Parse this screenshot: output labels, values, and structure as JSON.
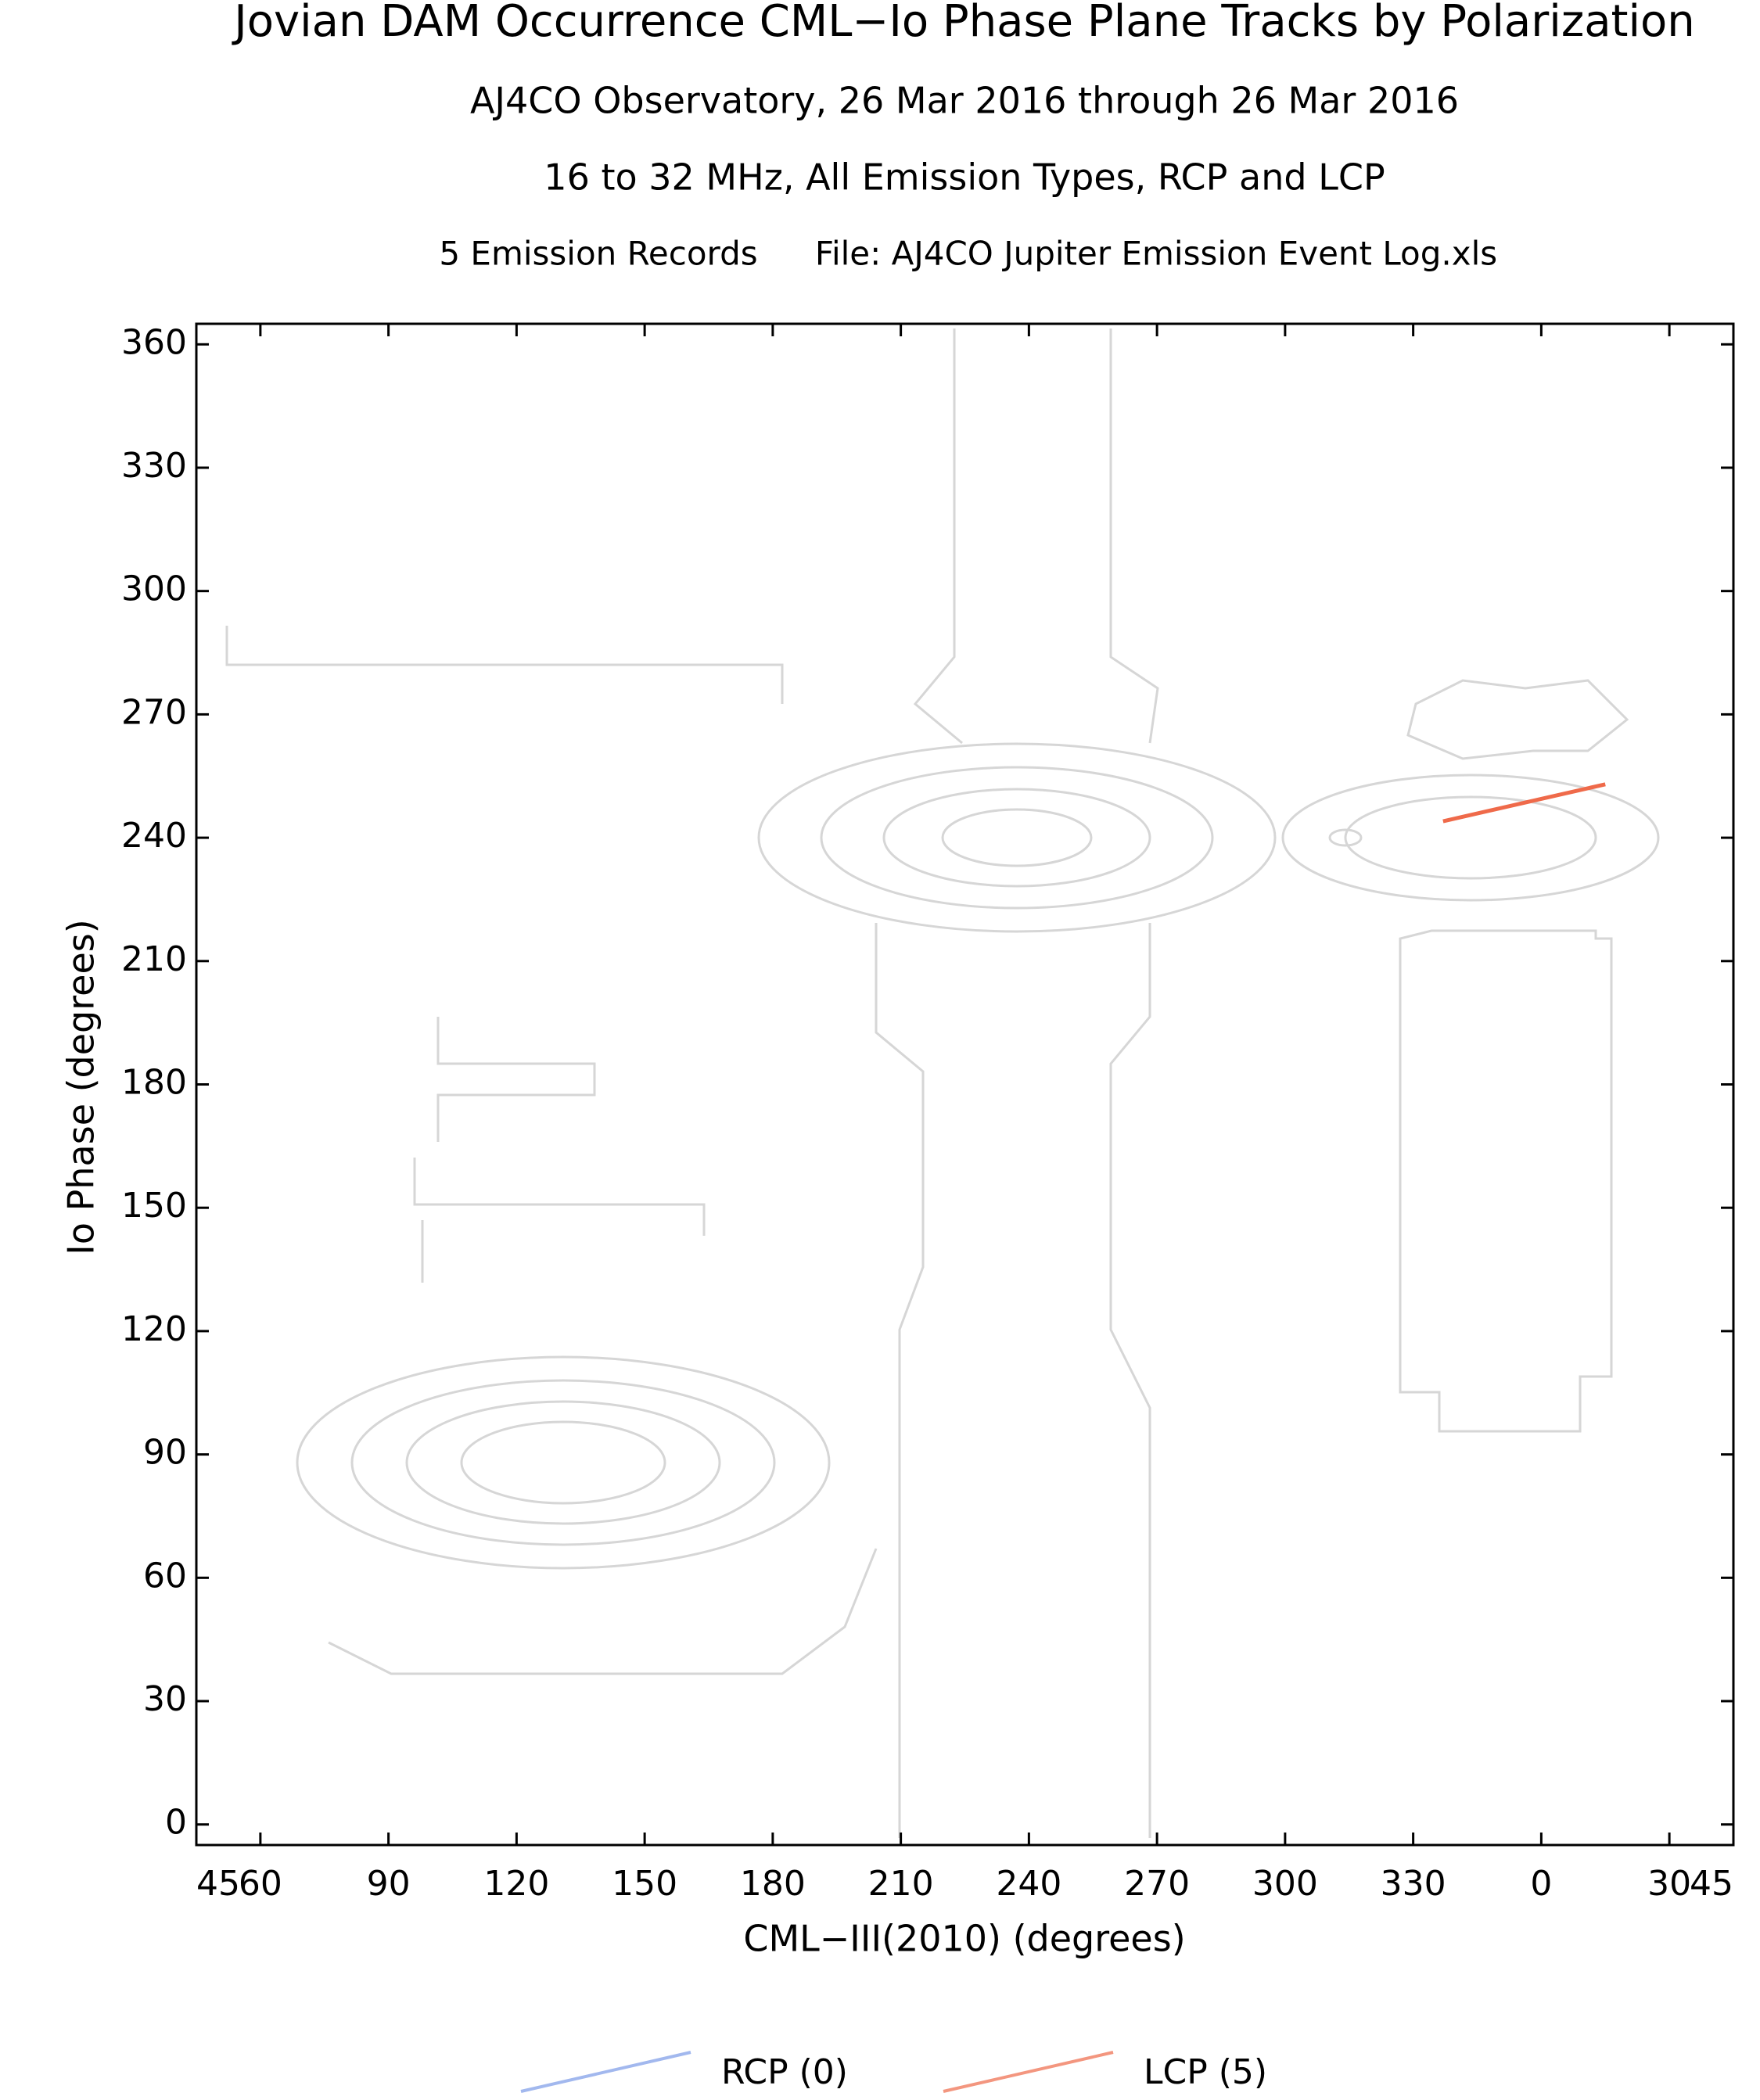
{
  "chart_data": {
    "type": "line",
    "title": "Jovian DAM Occurrence CML−Io Phase Plane Tracks by Polarization",
    "subtitles": [
      "AJ4CO Observatory, 26 Mar 2016 through 26 Mar 2016",
      "16 to 32 MHz, All Emission Types, RCP and LCP"
    ],
    "records_note": "5 Emission Records",
    "file_note": "File: AJ4CO Jupiter Emission Event Log.xls",
    "x_label": "CML−III(2010) (degrees)",
    "y_label": "Io Phase (degrees)",
    "xlim": [
      45,
      405
    ],
    "xticks": [
      45,
      60,
      90,
      120,
      150,
      180,
      210,
      240,
      270,
      300,
      330,
      {
        "value": 360,
        "label": "0"
      },
      {
        "value": 390,
        "label": "30"
      },
      {
        "value": 405,
        "label": "45"
      }
    ],
    "ylim": [
      -5,
      365
    ],
    "yticks": [
      0,
      30,
      60,
      90,
      120,
      150,
      180,
      210,
      240,
      270,
      300,
      330,
      360
    ],
    "series": [
      {
        "name": "RCP (0)",
        "color": "#7b9be8",
        "x": [],
        "values": []
      },
      {
        "name": "LCP (5)",
        "color": "#ef6a4a",
        "x": [
          337,
          375
        ],
        "values": [
          244,
          253
        ]
      }
    ]
  }
}
